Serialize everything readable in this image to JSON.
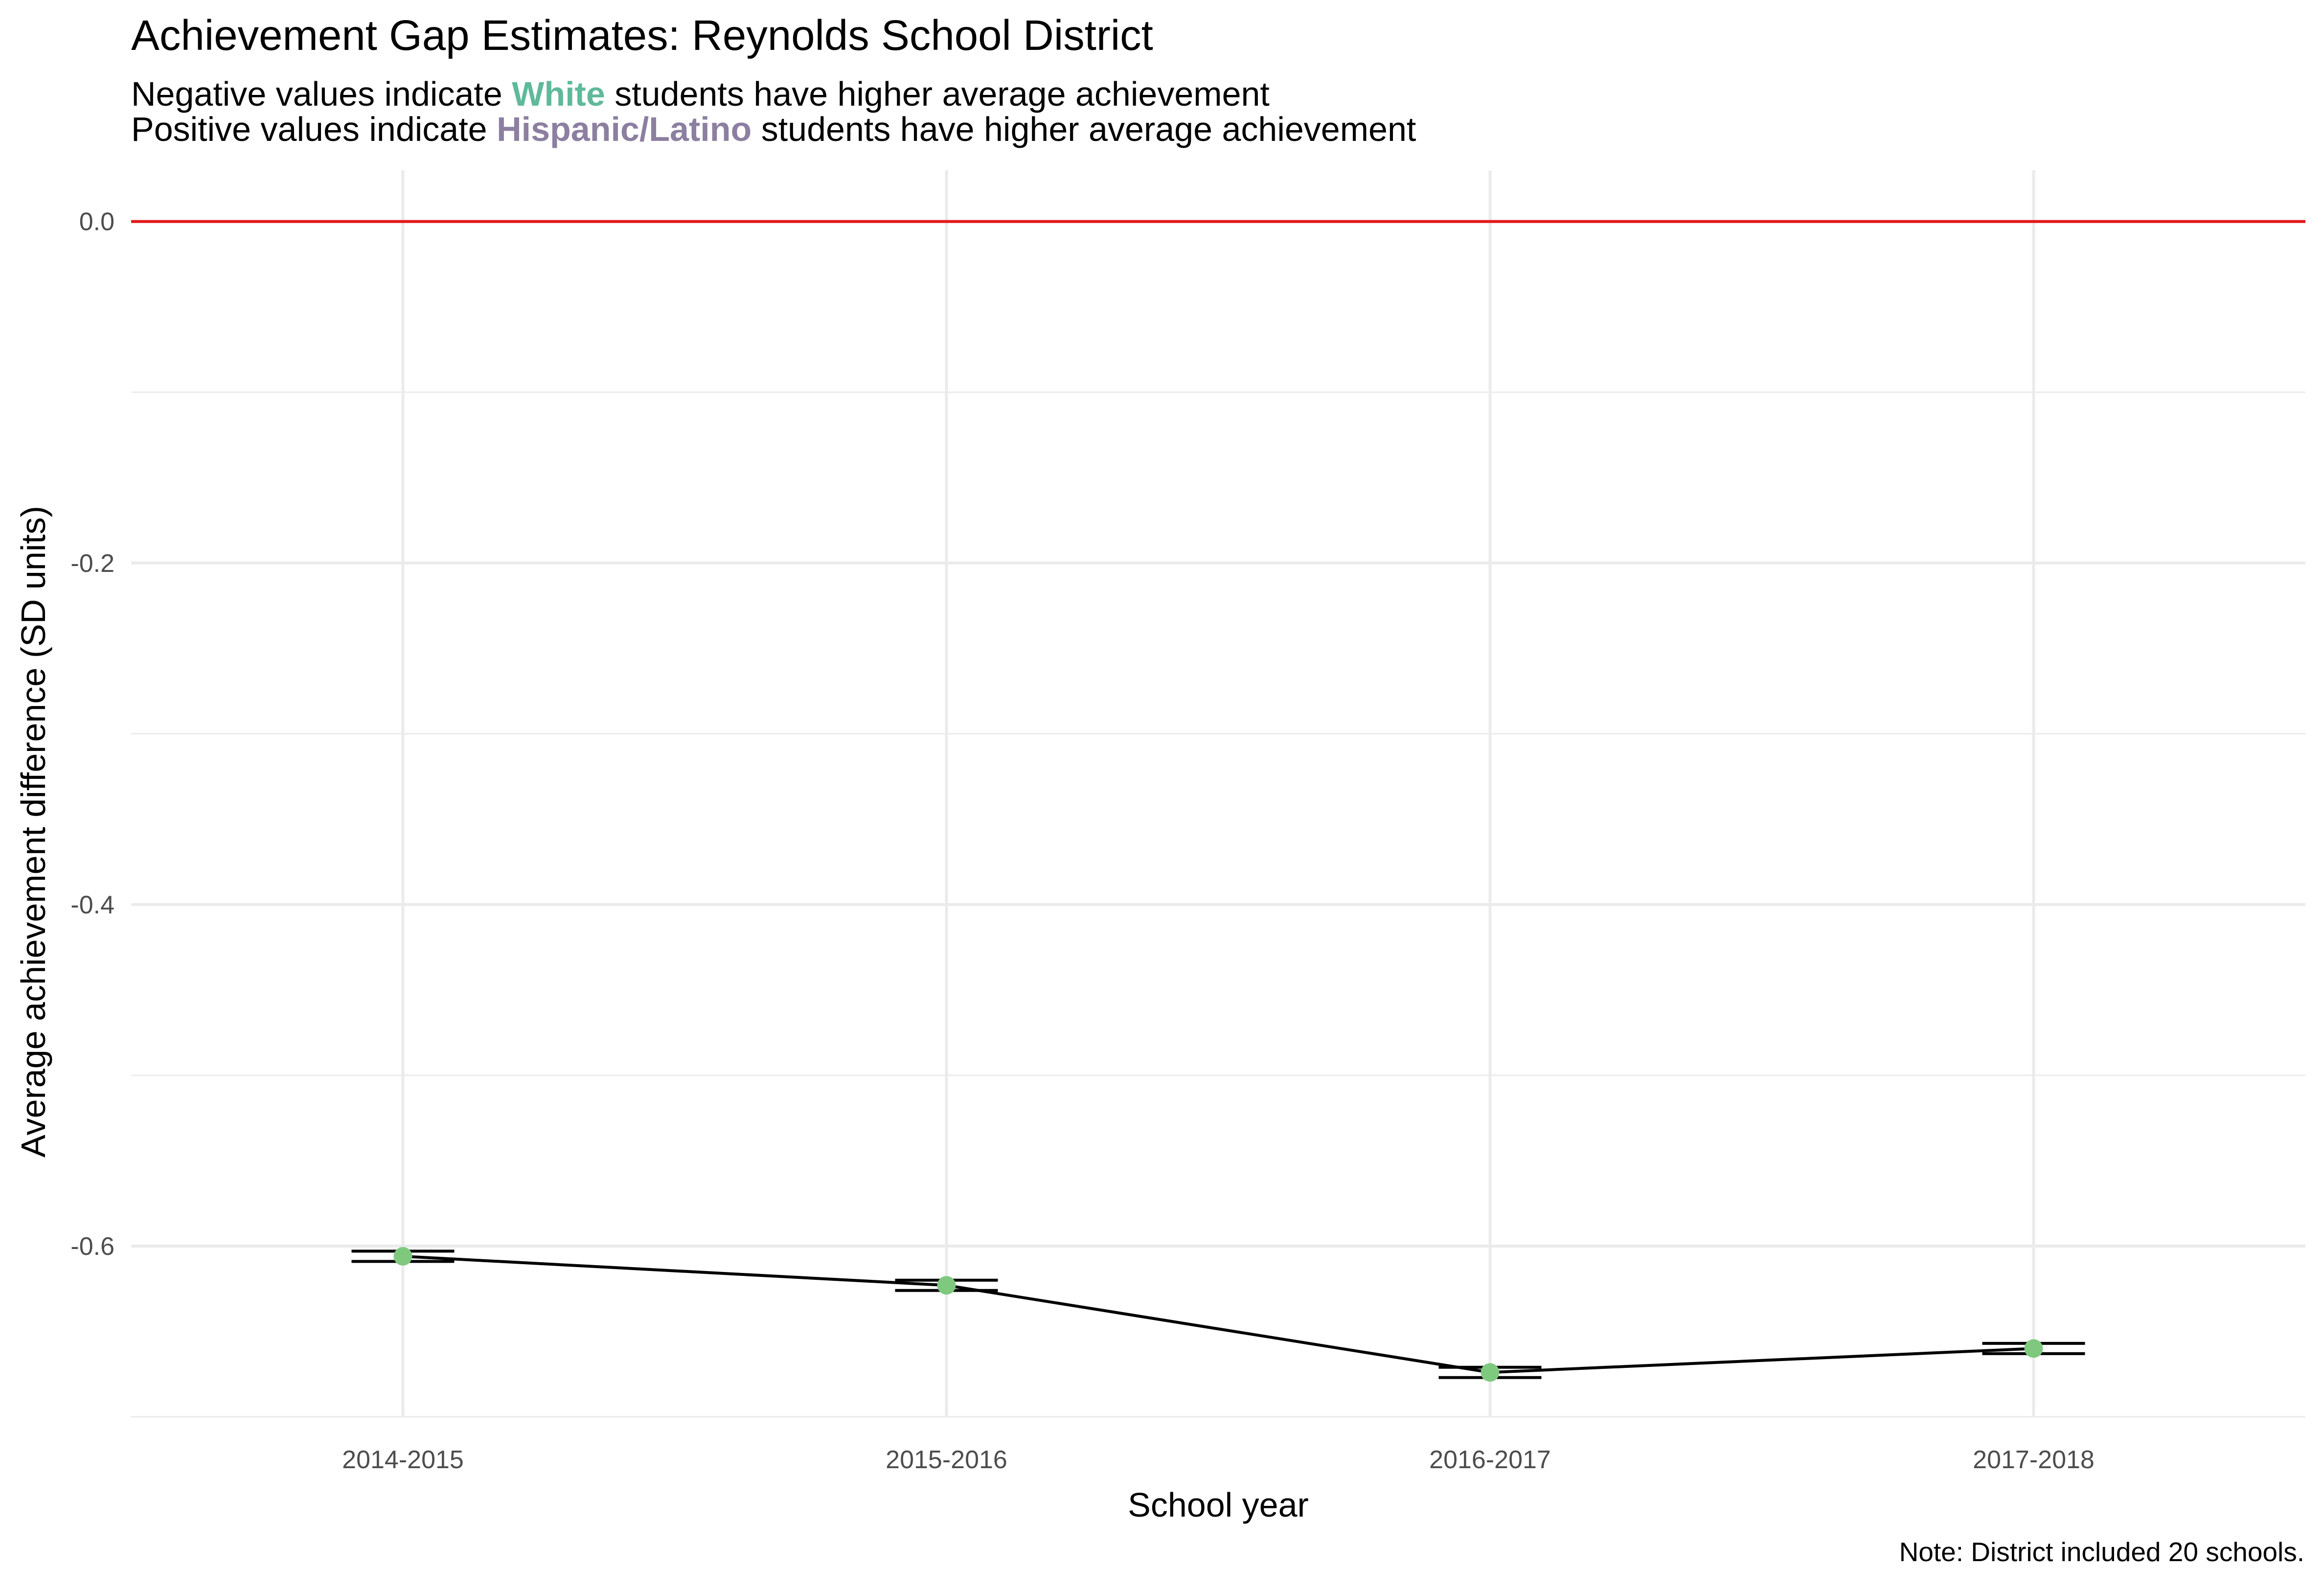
{
  "chart_data": {
    "type": "line",
    "title": "Achievement Gap Estimates: Reynolds School District",
    "subtitle": {
      "line1": {
        "before": "Negative values indicate ",
        "highlight": "White",
        "after": " students have higher average achievement",
        "highlight_color": "#5fb99a"
      },
      "line2": {
        "before": "Positive values indicate ",
        "highlight": "Hispanic/Latino",
        "after": " students have higher average achievement",
        "highlight_color": "#8c7fa0"
      }
    },
    "xlabel": "School year",
    "ylabel": "Average achievement difference (SD units)",
    "categories": [
      "2014-2015",
      "2015-2016",
      "2016-2017",
      "2017-2018"
    ],
    "series": [
      {
        "values": [
          -0.606,
          -0.623,
          -0.674,
          -0.66
        ],
        "error_low": [
          -0.609,
          -0.626,
          -0.677,
          -0.663
        ],
        "error_high": [
          -0.603,
          -0.62,
          -0.671,
          -0.657
        ],
        "point_color": "#7fc97f",
        "line_color": "#000000"
      }
    ],
    "ylim": [
      -0.7,
      0.03
    ],
    "yticks": [
      0.0,
      -0.2,
      -0.4,
      -0.6
    ],
    "ytick_labels": [
      "0.0",
      "-0.2",
      "-0.4",
      "-0.6"
    ],
    "reference_line": {
      "y": 0.0,
      "color": "#e31a1c"
    },
    "grid": true,
    "caption": "Note: District included 20 schools."
  }
}
